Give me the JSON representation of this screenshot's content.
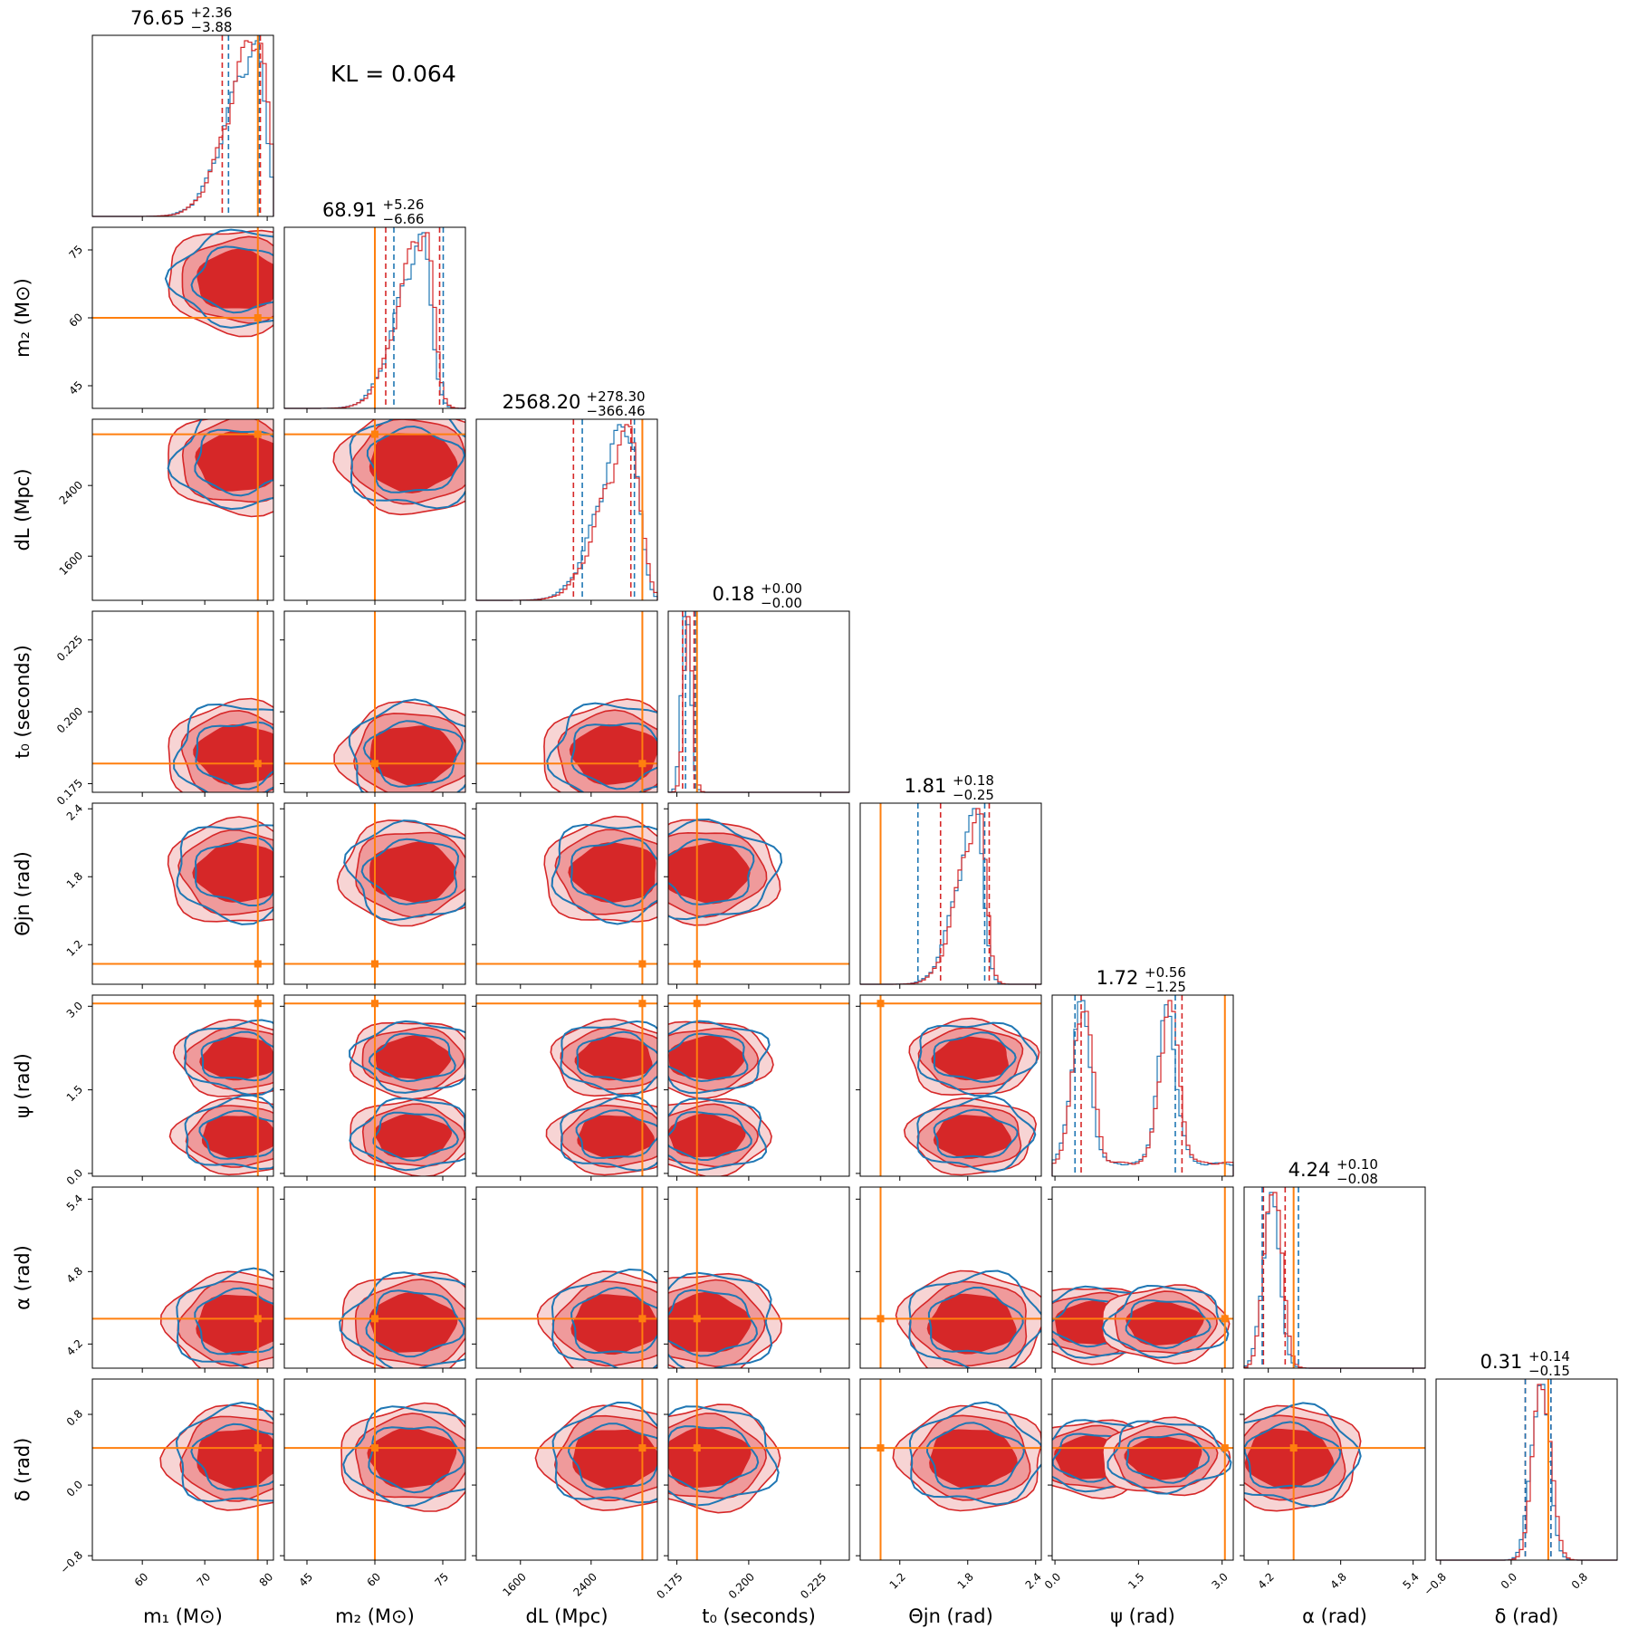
{
  "chart_data": {
    "type": "corner",
    "annotation": "KL = 0.064",
    "colors": {
      "run_a": "#d62728",
      "run_b": "#1f77b4",
      "injection": "#ff7f0e",
      "fill_inner": "#d62728",
      "fill_outer": "#ef9a9b",
      "fill_faint": "#f7d4d4"
    },
    "parameters": [
      {
        "id": "m1",
        "label": "m₁ (M⊙)",
        "range": [
          52,
          81
        ],
        "ticks": [
          60,
          70,
          80
        ],
        "tick_labels": [
          "60",
          "70",
          "80"
        ],
        "truth": 78.5,
        "title": {
          "median": "76.65",
          "plus": "+2.36",
          "minus": "−3.88"
        },
        "q_a": [
          72.8,
          78.9
        ],
        "q_b": [
          73.8,
          78.7
        ],
        "peak": 78.5,
        "spread": 4.5,
        "shape": "skew-left",
        "tick_rotation": 45
      },
      {
        "id": "m2",
        "label": "m₂ (M⊙)",
        "range": [
          40,
          80
        ],
        "ticks": [
          45,
          60,
          75
        ],
        "tick_labels": [
          "45",
          "60",
          "75"
        ],
        "truth": 60,
        "title": {
          "median": "68.91",
          "plus": "+5.26",
          "minus": "−6.66"
        },
        "q_a": [
          62.4,
          74.3
        ],
        "q_b": [
          64.2,
          75.1
        ],
        "peak": 71,
        "spread": 5.5,
        "shape": "skew-left",
        "tick_rotation": 45
      },
      {
        "id": "dL",
        "label": "dL (Mpc)",
        "range": [
          1100,
          3150
        ],
        "ticks": [
          1600,
          2400
        ],
        "tick_labels": [
          "1600",
          "2400"
        ],
        "truth": 2980,
        "title": {
          "median": "2568.20",
          "plus": "+278.30",
          "minus": "−366.46"
        },
        "q_a": [
          2200,
          2850
        ],
        "q_b": [
          2300,
          2890
        ],
        "peak": 2850,
        "spread": 320,
        "shape": "skew-left",
        "tick_rotation": 45
      },
      {
        "id": "t0",
        "label": "t₀ (seconds)",
        "range": [
          0.172,
          0.235
        ],
        "ticks": [
          0.175,
          0.2,
          0.225
        ],
        "tick_labels": [
          "0.175",
          "0.200",
          "0.225"
        ],
        "truth": 0.182,
        "title": {
          "median": "0.18",
          "plus": "+0.00",
          "minus": "−0.00"
        },
        "q_a": [
          0.177,
          0.181
        ],
        "q_b": [
          0.178,
          0.1815
        ],
        "peak": 0.179,
        "spread": 0.0015,
        "shape": "narrow",
        "tick_rotation": 45
      },
      {
        "id": "theta_jn",
        "label": "Θjn (rad)",
        "range": [
          0.85,
          2.45
        ],
        "ticks": [
          1.2,
          1.8,
          2.4
        ],
        "tick_labels": [
          "1.2",
          "1.8",
          "2.4"
        ],
        "truth": 1.03,
        "title": {
          "median": "1.81",
          "plus": "+0.18",
          "minus": "−0.25"
        },
        "q_a": [
          1.56,
          1.99
        ],
        "q_b": [
          1.36,
          1.95
        ],
        "peak": 1.9,
        "spread": 0.18,
        "shape": "skew-left",
        "tick_rotation": 45
      },
      {
        "id": "psi",
        "label": "ψ (rad)",
        "range": [
          -0.05,
          3.2
        ],
        "ticks": [
          0.0,
          1.5,
          3.0
        ],
        "tick_labels": [
          "0.0",
          "1.5",
          "3.0"
        ],
        "truth": 3.05,
        "title": {
          "median": "1.72",
          "plus": "+0.56",
          "minus": "−1.25"
        },
        "q_a": [
          0.47,
          2.28
        ],
        "q_b": [
          0.36,
          2.16
        ],
        "peak": 2.0,
        "spread": 0.15,
        "shape": "bimodal",
        "tick_rotation": 45
      },
      {
        "id": "alpha",
        "label": "α (rad)",
        "range": [
          4.0,
          5.5
        ],
        "ticks": [
          4.2,
          4.8,
          5.4
        ],
        "tick_labels": [
          "4.2",
          "4.8",
          "5.4"
        ],
        "truth": 4.41,
        "title": {
          "median": "4.24",
          "plus": "+0.10",
          "minus": "−0.08"
        },
        "q_a": [
          4.16,
          4.34
        ],
        "q_b": [
          4.15,
          4.45
        ],
        "peak": 4.24,
        "spread": 0.07,
        "shape": "narrow",
        "tick_rotation": 45
      },
      {
        "id": "delta",
        "label": "δ (rad)",
        "range": [
          -0.85,
          1.2
        ],
        "ticks": [
          -0.8,
          0.0,
          0.8
        ],
        "tick_labels": [
          "−0.8",
          "0.0",
          "0.8"
        ],
        "truth": 0.42,
        "title": {
          "median": "0.31",
          "plus": "+0.14",
          "minus": "−0.15"
        },
        "q_a": [
          0.16,
          0.45
        ],
        "q_b": [
          0.16,
          0.45
        ],
        "peak": 0.35,
        "spread": 0.1,
        "shape": "narrow",
        "tick_rotation": 45
      }
    ]
  }
}
